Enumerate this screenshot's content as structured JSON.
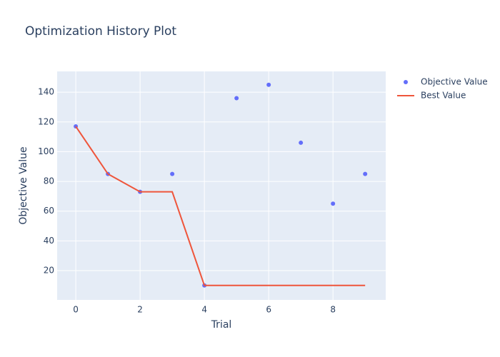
{
  "chart_data": {
    "type": "scatter",
    "title": "Optimization History Plot",
    "x_label": "Trial",
    "y_label": "Objective Value",
    "x": [
      0,
      1,
      2,
      3,
      4,
      5,
      6,
      7,
      8,
      9
    ],
    "series": [
      {
        "name": "Objective Value",
        "color": "#636efa",
        "mode": "markers",
        "values": [
          117,
          85,
          73,
          85,
          10,
          136,
          145,
          106,
          65,
          85
        ]
      },
      {
        "name": "Best Value",
        "color": "#ef553b",
        "mode": "lines",
        "values": [
          117,
          85,
          73,
          73,
          10,
          10,
          10,
          10,
          10,
          10
        ]
      }
    ],
    "xlim": [
      -0.58,
      9.64
    ],
    "ylim": [
      0.3,
      154
    ],
    "xticks": [
      0,
      2,
      4,
      6,
      8
    ],
    "yticks": [
      20,
      40,
      60,
      80,
      100,
      120,
      140
    ],
    "grid": true,
    "legend": "right"
  }
}
